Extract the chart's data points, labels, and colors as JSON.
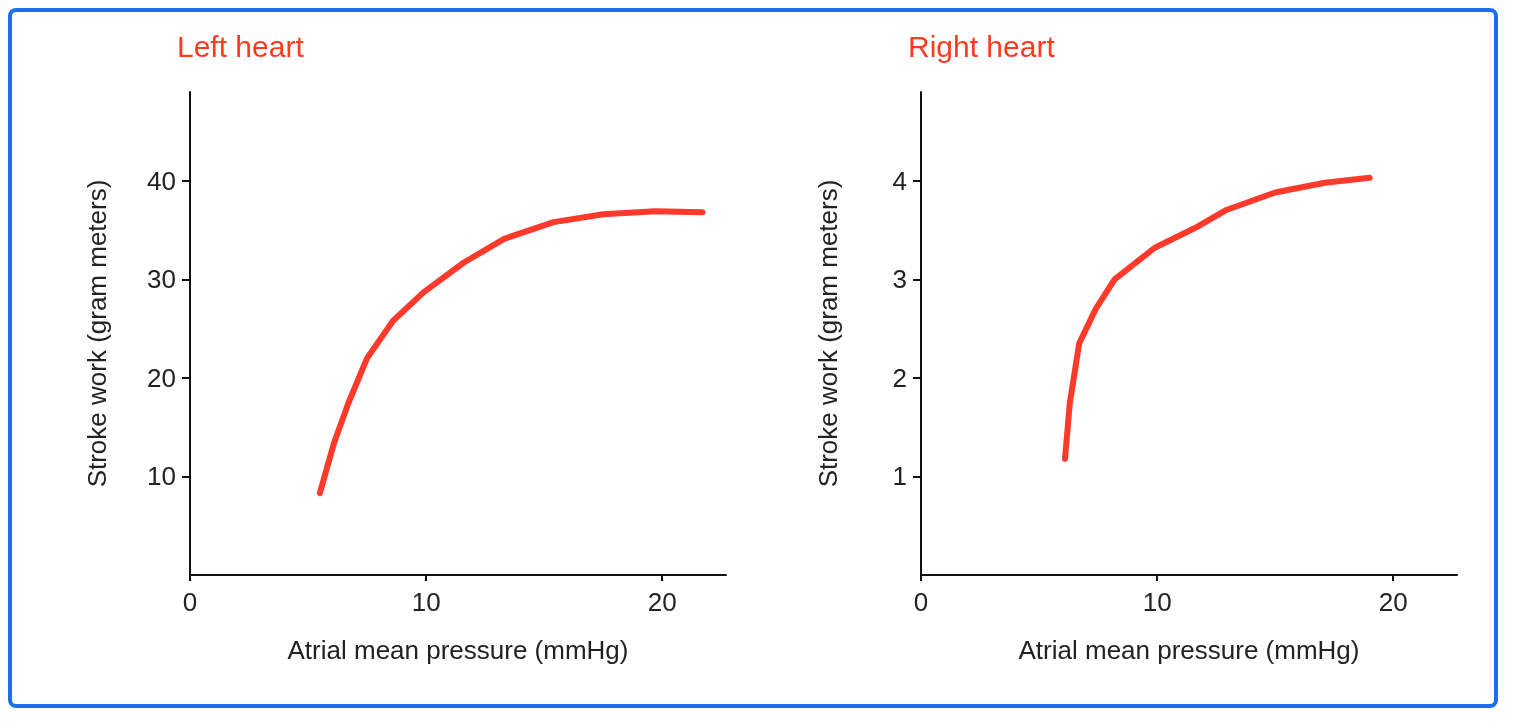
{
  "chart_data": [
    {
      "type": "line",
      "title": "Left heart",
      "xlabel": "Atrial mean pressure (mmHg)",
      "ylabel": "Stroke work (gram meters)",
      "x": [
        5.5,
        6.1,
        6.7,
        7.5,
        8.6,
        9.9,
        11.6,
        13.3,
        15.4,
        17.5,
        19.7,
        21.7
      ],
      "series": [
        {
          "color": "#ff3a2a",
          "values": [
            8.3,
            13.4,
            17.4,
            22,
            25.8,
            28.7,
            31.7,
            34.1,
            35.8,
            36.6,
            36.9,
            36.8
          ]
        }
      ],
      "xlim": [
        0,
        22.7
      ],
      "xticks": [
        0,
        10,
        20
      ],
      "ylim": [
        0,
        49
      ],
      "yticks": [
        10,
        20,
        30,
        40
      ],
      "grid": false,
      "marker": "none",
      "line_style": "solid"
    },
    {
      "type": "line",
      "title": "Right heart",
      "xlabel": "Atrial mean pressure (mmHg)",
      "ylabel": "Stroke work (gram meters)",
      "x": [
        6.1,
        6.3,
        6.7,
        7.4,
        8.2,
        9.9,
        11.6,
        12.9,
        15.0,
        17.1,
        19.0
      ],
      "series": [
        {
          "color": "#ff3a2a",
          "values": [
            1.18,
            1.74,
            2.35,
            2.7,
            3.0,
            3.32,
            3.52,
            3.7,
            3.88,
            3.98,
            4.03
          ]
        }
      ],
      "xlim": [
        0,
        22.7
      ],
      "xticks": [
        0,
        10,
        20
      ],
      "ylim": [
        0,
        4.9
      ],
      "yticks": [
        1,
        2,
        3,
        4
      ],
      "grid": false,
      "marker": "none",
      "line_style": "solid"
    }
  ]
}
